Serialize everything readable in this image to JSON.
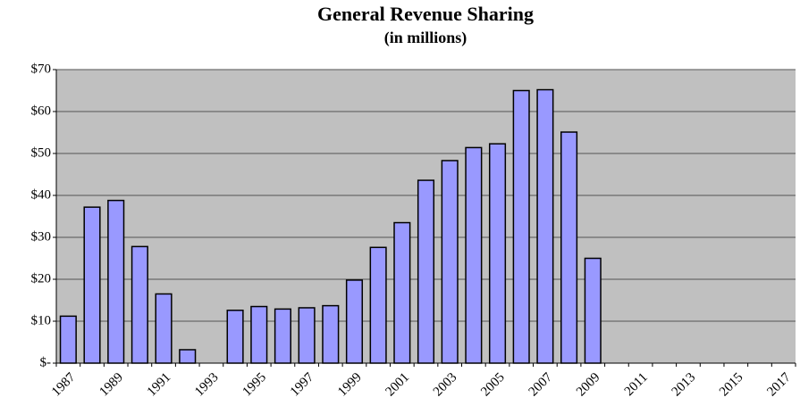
{
  "chart_data": {
    "type": "bar",
    "title": "General Revenue Sharing",
    "subtitle": "(in millions)",
    "categories": [
      "1987",
      null,
      "1989",
      null,
      "1991",
      null,
      "1993",
      null,
      "1995",
      null,
      "1997",
      null,
      "1999",
      null,
      "2001",
      null,
      "2003",
      null,
      "2005",
      null,
      "2007",
      null,
      "2009",
      null,
      "2011",
      null,
      "2013",
      null,
      "2015",
      null,
      "2017"
    ],
    "values": [
      11.2,
      37.2,
      38.8,
      27.8,
      16.5,
      3.2,
      null,
      12.6,
      13.5,
      12.9,
      13.2,
      13.7,
      19.8,
      27.6,
      33.5,
      43.6,
      48.3,
      51.4,
      52.3,
      65,
      65.2,
      55.1,
      25,
      null,
      null,
      null,
      null,
      null,
      null,
      null,
      null
    ],
    "color": "#9999ff",
    "ylim": [
      0,
      70
    ],
    "yticks": [
      {
        "value": 0,
        "label": "$-"
      },
      {
        "value": 10,
        "label": "$10"
      },
      {
        "value": 20,
        "label": "$20"
      },
      {
        "value": 30,
        "label": "$30"
      },
      {
        "value": 40,
        "label": "$40"
      },
      {
        "value": 50,
        "label": "$50"
      },
      {
        "value": 60,
        "label": "$60"
      },
      {
        "value": 70,
        "label": "$70"
      }
    ],
    "grid": true
  }
}
